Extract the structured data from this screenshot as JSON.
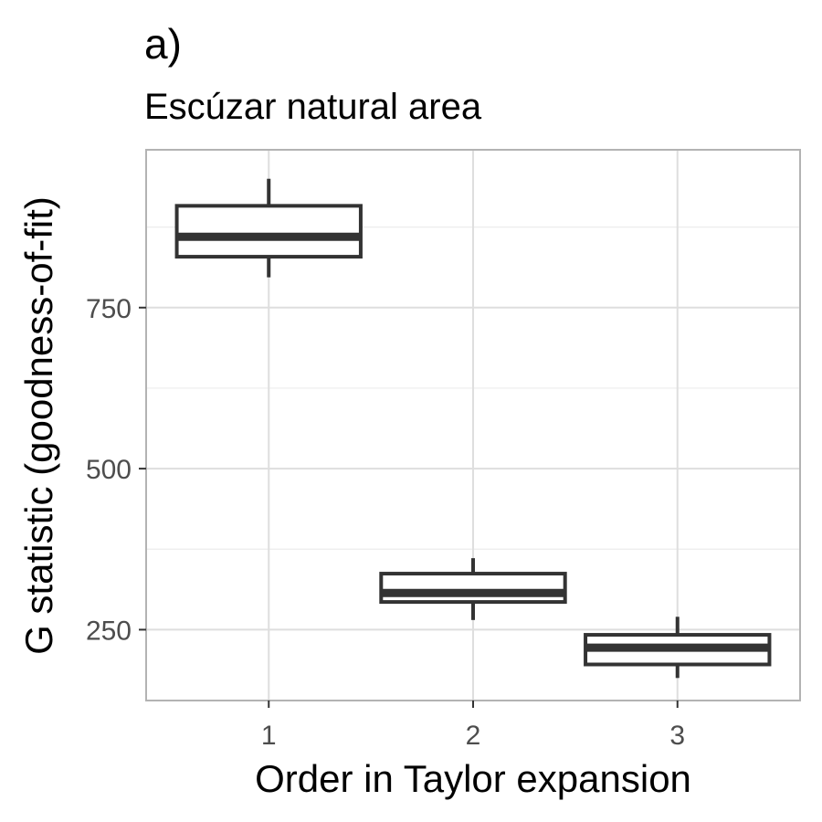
{
  "chart_data": {
    "type": "boxplot",
    "title": "a)",
    "subtitle": "Escúzar natural area",
    "xlabel": "Order in Taylor expansion",
    "ylabel": "G statistic (goodness-of-fit)",
    "categories": [
      "1",
      "2",
      "3"
    ],
    "ylim": [
      140,
      995
    ],
    "y_ticks": [
      250,
      500,
      750
    ],
    "y_minor_ticks": [
      375,
      625,
      875
    ],
    "grid": true,
    "boxes": [
      {
        "category": "1",
        "whisker_low": 797,
        "q1": 829,
        "median": 860,
        "q3": 908,
        "whisker_high": 950
      },
      {
        "category": "2",
        "whisker_low": 265,
        "q1": 293,
        "median": 307,
        "q3": 337,
        "whisker_high": 361
      },
      {
        "category": "3",
        "whisker_low": 175,
        "q1": 196,
        "median": 222,
        "q3": 242,
        "whisker_high": 270
      }
    ]
  }
}
